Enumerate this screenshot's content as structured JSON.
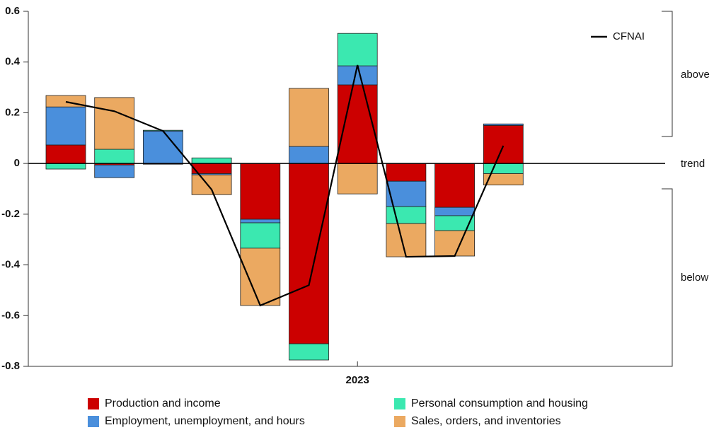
{
  "chart_data": {
    "type": "bar",
    "stacked": true,
    "categories": [
      null,
      null,
      null,
      null,
      null,
      null,
      "2023",
      null,
      null,
      null
    ],
    "series": [
      {
        "name": "Production and income",
        "color": "#cc0000",
        "values": [
          0.073,
          -0.006,
          -0.003,
          -0.04,
          -0.22,
          -0.711,
          0.31,
          -0.07,
          -0.173,
          0.15
        ]
      },
      {
        "name": "Employment, unemployment, and hours",
        "color": "#4a8fdc",
        "values": [
          0.15,
          -0.05,
          0.128,
          -0.005,
          -0.014,
          0.067,
          0.075,
          -0.1,
          -0.033,
          0.006
        ]
      },
      {
        "name": "Personal consumption and housing",
        "color": "#3be8b0",
        "values": [
          -0.022,
          0.056,
          0.003,
          0.022,
          -0.1,
          -0.064,
          0.128,
          -0.067,
          -0.059,
          -0.04
        ]
      },
      {
        "name": "Sales, orders, and inventories",
        "color": "#eba961",
        "values": [
          0.045,
          0.204,
          0,
          -0.078,
          -0.226,
          0.229,
          -0.12,
          -0.131,
          -0.1,
          -0.045
        ]
      }
    ],
    "line": {
      "name": "CFNAI",
      "color": "#000000",
      "values": [
        0.243,
        0.206,
        0.128,
        -0.103,
        -0.56,
        -0.48,
        0.388,
        -0.368,
        -0.365,
        0.07
      ]
    },
    "ylim": [
      -0.8,
      0.6
    ],
    "yticks": [
      -0.8,
      -0.6,
      -0.4,
      -0.2,
      0,
      0.2,
      0.4,
      0.6
    ],
    "annotations": [
      "above",
      "trend",
      "below"
    ]
  }
}
